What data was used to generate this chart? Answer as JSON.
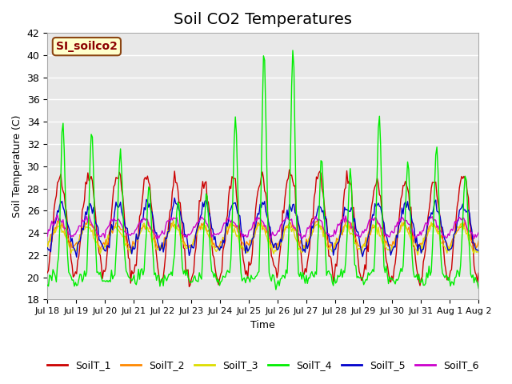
{
  "title": "Soil CO2 Temperatures",
  "xlabel": "Time",
  "ylabel": "Soil Temperature (C)",
  "ylim": [
    18,
    42
  ],
  "site_label": "SI_soilco2",
  "bg_color": "#e8e8e8",
  "fig_bg": "#ffffff",
  "legend_entries": [
    "SoilT_1",
    "SoilT_2",
    "SoilT_3",
    "SoilT_4",
    "SoilT_5",
    "SoilT_6"
  ],
  "line_colors": [
    "#cc0000",
    "#ff8800",
    "#dddd00",
    "#00ee00",
    "#0000cc",
    "#cc00cc"
  ],
  "xtick_labels": [
    "Jul 18",
    "Jul 19",
    "Jul 20",
    "Jul 21",
    "Jul 22",
    "Jul 23",
    "Jul 24",
    "Jul 25",
    "Jul 26",
    "Jul 27",
    "Jul 28",
    "Jul 29",
    "Jul 30",
    "Jul 31",
    "Aug 1",
    "Aug 2"
  ],
  "grid_color": "#ffffff",
  "title_fontsize": 14
}
